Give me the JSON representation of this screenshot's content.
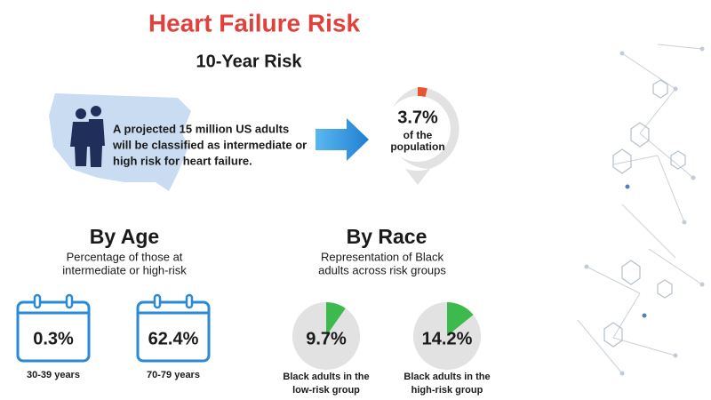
{
  "header": {
    "title": "Heart Failure Risk",
    "subtitle": "10-Year Risk"
  },
  "overview": {
    "text": [
      "A projected 15 million US adults",
      "will be classified as intermediate or",
      "high risk for heart failure."
    ],
    "population": {
      "value": 3.7,
      "label": "3.7%",
      "caption": [
        "of the",
        "population"
      ]
    }
  },
  "age": {
    "title": "By Age",
    "subtitle": [
      "Percentage of those at",
      "intermediate or high-risk"
    ],
    "groups": [
      {
        "value": "0.3%",
        "label": "30-39 years"
      },
      {
        "value": "62.4%",
        "label": "70-79 years"
      }
    ]
  },
  "race": {
    "title": "By Race",
    "subtitle": [
      "Representation of Black",
      "adults across risk groups"
    ],
    "groups": [
      {
        "value": 9.7,
        "label": "9.7%",
        "caption": [
          "Black adults in the",
          "low-risk group"
        ]
      },
      {
        "value": 14.2,
        "label": "14.2%",
        "caption": [
          "Black adults in the",
          "high-risk group"
        ]
      }
    ]
  }
}
